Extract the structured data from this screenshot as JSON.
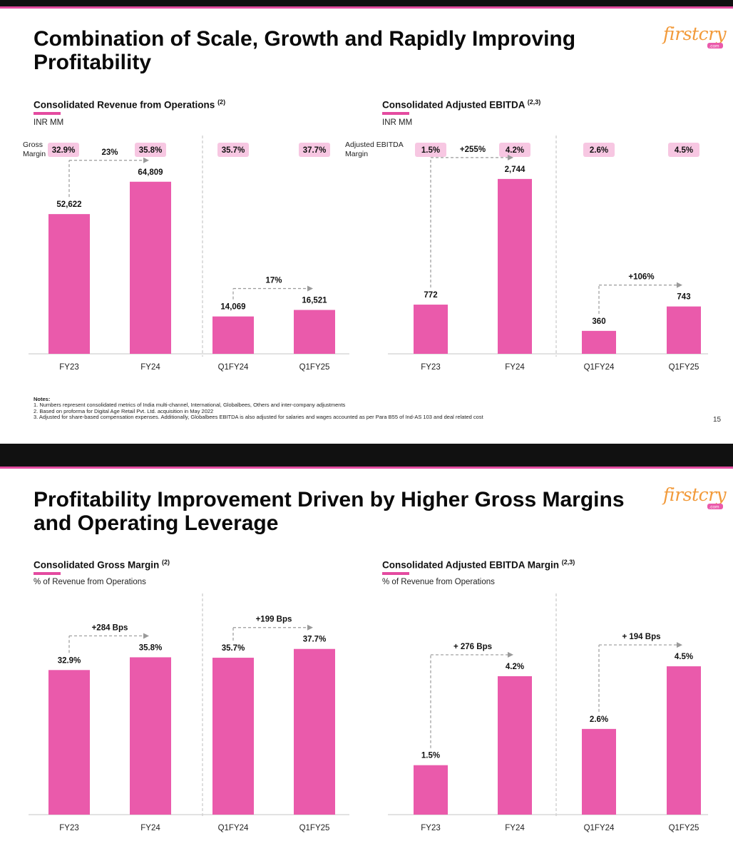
{
  "slide1": {
    "title": "Combination of Scale, Growth and Rapidly Improving Profitability",
    "logo_text": "firstcry",
    "logo_sub": ".com",
    "page_number": "15",
    "notes": {
      "heading": "Notes:",
      "lines": [
        "1. Numbers represent consolidated metrics of India multi-channel, International, Globalbees, Others and inter-company adjustments",
        "2. Based on proforma for Digital Age Retail Pvt. Ltd. acquisition in May 2022",
        "3. Adjusted for share-based compensation expenses. Additionally, Globalbees EBITDA is also adjusted for salaries and wages accounted as per Para B55 of Ind-AS 103 and deal related cost"
      ]
    },
    "left_chart": {
      "title": "Consolidated Revenue from Operations",
      "sup": "(2)",
      "unit": "INR MM"
    },
    "right_chart": {
      "title": "Consolidated Adjusted EBITDA",
      "sup": "(2,3)",
      "unit": "INR MM"
    }
  },
  "slide2": {
    "title": "Profitability Improvement Driven by Higher Gross Margins and Operating Leverage",
    "logo_text": "firstcry",
    "logo_sub": ".com",
    "left_chart": {
      "title": "Consolidated Gross Margin",
      "sup": "(2)",
      "unit": "% of Revenue from Operations"
    },
    "right_chart": {
      "title": "Consolidated Adjusted EBITDA Margin",
      "sup": "(2,3)",
      "unit": "% of Revenue from Operations"
    }
  },
  "colors": {
    "bar": "#ea5aab",
    "pill": "#f7c7e2",
    "accent": "#e44ba0",
    "topbar": "#111111"
  },
  "chart_data": [
    {
      "id": "revenue",
      "type": "bar",
      "title": "Consolidated Revenue from Operations",
      "ylabel": "INR MM",
      "categories": [
        "FY23",
        "FY24",
        "Q1FY24",
        "Q1FY25"
      ],
      "values": [
        52622,
        64809,
        14069,
        16521
      ],
      "value_labels": [
        "52,622",
        "64,809",
        "14,069",
        "16,521"
      ],
      "ylim": [
        0,
        72000
      ],
      "margin_label": "Gross Margin",
      "margins": [
        "32.9%",
        "35.8%",
        "35.7%",
        "37.7%"
      ],
      "growth": [
        {
          "from": 0,
          "to": 1,
          "label": "23%"
        },
        {
          "from": 2,
          "to": 3,
          "label": "17%"
        }
      ]
    },
    {
      "id": "ebitda",
      "type": "bar",
      "title": "Consolidated Adjusted EBITDA",
      "ylabel": "INR MM",
      "categories": [
        "FY23",
        "FY24",
        "Q1FY24",
        "Q1FY25"
      ],
      "values": [
        772,
        2744,
        360,
        743
      ],
      "value_labels": [
        "772",
        "2,744",
        "360",
        "743"
      ],
      "ylim": [
        0,
        3000
      ],
      "margin_label": "Adjusted EBITDA Margin",
      "margins": [
        "1.5%",
        "4.2%",
        "2.6%",
        "4.5%"
      ],
      "growth": [
        {
          "from": 0,
          "to": 1,
          "label": "+255%"
        },
        {
          "from": 2,
          "to": 3,
          "label": "+106%"
        }
      ]
    },
    {
      "id": "gross_margin",
      "type": "bar",
      "title": "Consolidated Gross Margin",
      "ylabel": "% of Revenue from Operations",
      "categories": [
        "FY23",
        "FY24",
        "Q1FY24",
        "Q1FY25"
      ],
      "values": [
        32.9,
        35.8,
        35.7,
        37.7
      ],
      "value_labels": [
        "32.9%",
        "35.8%",
        "35.7%",
        "37.7%"
      ],
      "ylim": [
        0,
        43.5
      ],
      "growth": [
        {
          "from": 0,
          "to": 1,
          "label": "+284 Bps"
        },
        {
          "from": 2,
          "to": 3,
          "label": "+199 Bps"
        }
      ]
    },
    {
      "id": "ebitda_margin",
      "type": "bar",
      "title": "Consolidated Adjusted EBITDA Margin",
      "ylabel": "% of Revenue from Operations",
      "categories": [
        "FY23",
        "FY24",
        "Q1FY24",
        "Q1FY25"
      ],
      "values": [
        1.5,
        4.2,
        2.6,
        4.5
      ],
      "value_labels": [
        "1.5%",
        "4.2%",
        "2.6%",
        "4.5%"
      ],
      "ylim": [
        0,
        5.8
      ],
      "growth": [
        {
          "from": 0,
          "to": 1,
          "label": "+ 276 Bps"
        },
        {
          "from": 2,
          "to": 3,
          "label": "+ 194 Bps"
        }
      ]
    }
  ]
}
